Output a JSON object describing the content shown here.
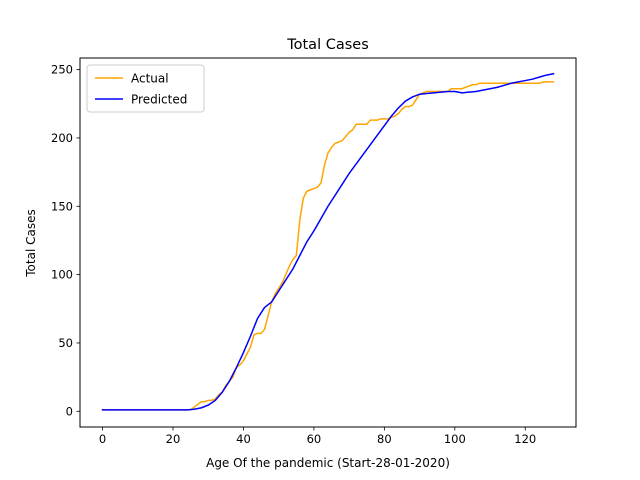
{
  "chart_data": {
    "type": "line",
    "title": "Total Cases",
    "xlabel": "Age Of the pandemic (Start-28-01-2020)",
    "ylabel": "Total Cases",
    "xlim": [
      -6.4,
      134.4
    ],
    "ylim": [
      -11.5,
      258.5
    ],
    "xticks": [
      0,
      20,
      40,
      60,
      80,
      100,
      120
    ],
    "yticks": [
      0,
      50,
      100,
      150,
      200,
      250
    ],
    "grid": false,
    "legend_position": "top-left",
    "series": [
      {
        "name": "Actual",
        "color": "#ffa500",
        "x": [
          0,
          25,
          26,
          27,
          28,
          29,
          30,
          31,
          32,
          33,
          34,
          35,
          36,
          37,
          38,
          39,
          40,
          41,
          42,
          43,
          44,
          45,
          46,
          47,
          48,
          49,
          50,
          51,
          52,
          53,
          54,
          55,
          56,
          57,
          58,
          59,
          60,
          61,
          62,
          63,
          64,
          65,
          66,
          67,
          68,
          69,
          70,
          71,
          72,
          73,
          74,
          75,
          76,
          77,
          78,
          79,
          80,
          81,
          82,
          83,
          84,
          85,
          86,
          87,
          88,
          89,
          90,
          91,
          92,
          93,
          94,
          95,
          96,
          97,
          98,
          99,
          100,
          101,
          102,
          103,
          104,
          105,
          106,
          107,
          108,
          109,
          110,
          111,
          112,
          113,
          114,
          115,
          116,
          117,
          118,
          119,
          120,
          121,
          122,
          123,
          124,
          125,
          126,
          127,
          128
        ],
        "y": [
          1,
          1,
          3,
          5,
          7,
          7,
          8,
          8,
          9,
          12,
          14,
          19,
          22,
          25,
          32,
          34,
          37,
          42,
          47,
          56,
          57,
          57,
          60,
          70,
          80,
          86,
          90,
          94,
          100,
          106,
          111,
          114,
          140,
          156,
          161,
          162,
          163,
          164,
          167,
          180,
          189,
          193,
          196,
          197,
          198,
          201,
          204,
          206,
          210,
          210,
          210,
          210,
          213,
          213,
          213,
          214,
          214,
          214,
          215,
          216,
          218,
          221,
          223,
          223,
          224,
          228,
          232,
          233,
          234,
          234,
          234,
          234,
          234,
          234,
          234,
          236,
          236,
          236,
          236,
          237,
          238,
          239,
          239,
          240,
          240,
          240,
          240,
          240,
          240,
          240,
          240,
          240,
          240,
          240,
          240,
          240,
          240,
          240,
          240,
          240,
          240,
          241,
          241,
          241,
          241
        ]
      },
      {
        "name": "Predicted",
        "color": "#0000ff",
        "x": [
          0,
          24,
          26,
          28,
          30,
          32,
          34,
          36,
          38,
          40,
          42,
          44,
          46,
          48,
          50,
          52,
          54,
          56,
          58,
          60,
          62,
          64,
          66,
          68,
          70,
          72,
          74,
          76,
          78,
          80,
          82,
          84,
          86,
          88,
          90,
          92,
          94,
          96,
          98,
          100,
          101,
          102,
          104,
          106,
          108,
          110,
          112,
          114,
          116,
          118,
          120,
          122,
          124,
          126,
          128
        ],
        "y": [
          1,
          1,
          1.5,
          2.5,
          4.5,
          8,
          14,
          22,
          32,
          43,
          55,
          68,
          76,
          80,
          88,
          96,
          104,
          114,
          124,
          132,
          141,
          150,
          158,
          166,
          174,
          181,
          188,
          195,
          202,
          209,
          216,
          222,
          227,
          230,
          232,
          232.5,
          233,
          233.5,
          234,
          234,
          233.5,
          233,
          233.5,
          234,
          235,
          236,
          237,
          238.5,
          240,
          241,
          242,
          243,
          244.5,
          246,
          247
        ]
      }
    ]
  }
}
